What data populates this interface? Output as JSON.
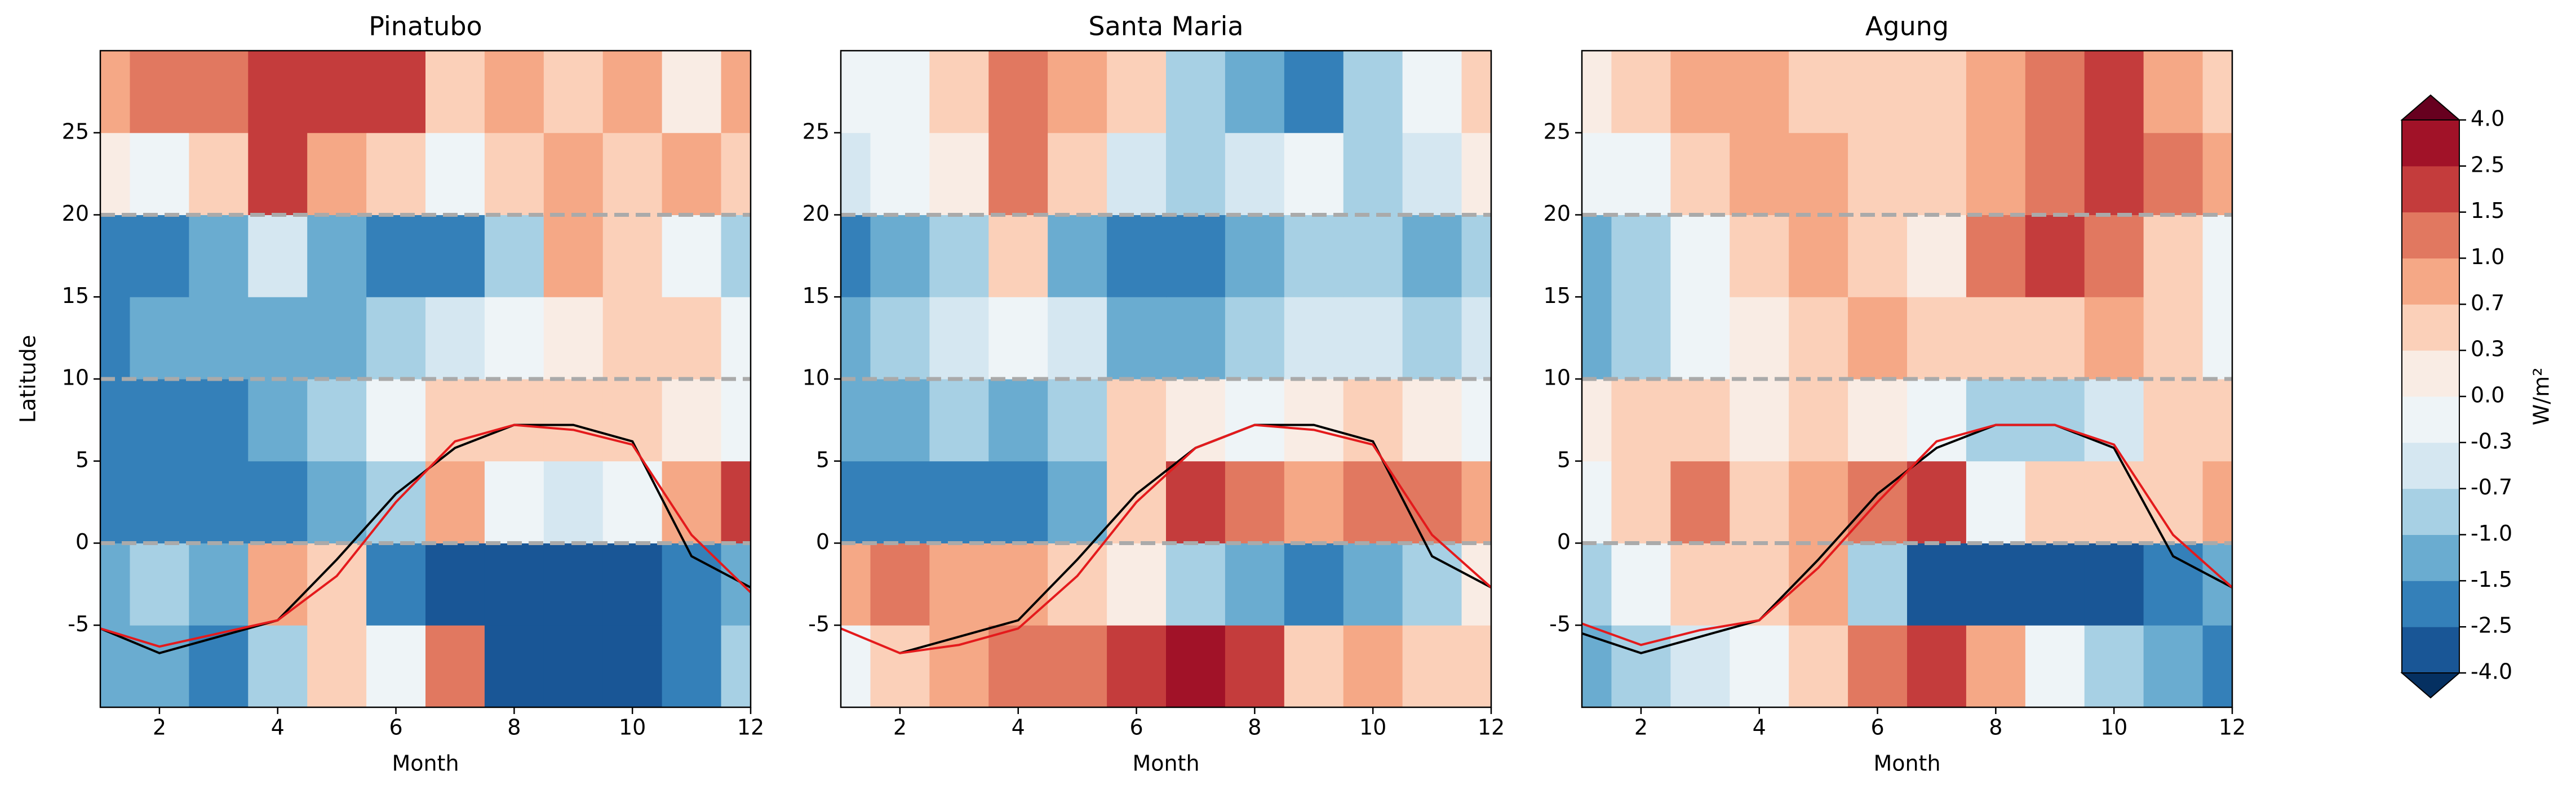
{
  "chart_data": [
    {
      "type": "contour",
      "title": "Pinatubo",
      "xlabel": "Month",
      "ylabel": "Latitude",
      "x": [
        1,
        2,
        3,
        4,
        5,
        6,
        7,
        8,
        9,
        10,
        11,
        12
      ],
      "y": [
        -7.5,
        -2.5,
        2.5,
        7.5,
        12.5,
        17.5,
        22.5,
        27.5
      ],
      "z": [
        [
          -1.5,
          -1.5,
          -2,
          -1,
          0.3,
          -0.3,
          1,
          -4,
          -4,
          -4,
          -2.5,
          -1
        ],
        [
          -1.5,
          -1,
          -1.5,
          0.7,
          0.3,
          -2.5,
          -4,
          -4,
          -4,
          -4,
          -2.5,
          -1.5
        ],
        [
          -2.5,
          -2.5,
          -2.5,
          -2.5,
          -1.5,
          -1,
          0.7,
          -0.3,
          -0.7,
          -0.3,
          0.7,
          1.5
        ],
        [
          -2.5,
          -2.5,
          -2.5,
          -1.5,
          -1,
          -0.3,
          0.3,
          0.3,
          0.3,
          0.3,
          0,
          -0.3
        ],
        [
          -2.5,
          -1.5,
          -1.5,
          -1.5,
          -1.5,
          -1,
          -0.7,
          -0.3,
          0,
          0.3,
          0.3,
          -0.3
        ],
        [
          -2.5,
          -2.5,
          -1.5,
          -0.7,
          -1.5,
          -2.5,
          -2.5,
          -1,
          0.7,
          0.3,
          -0.3,
          -1
        ],
        [
          0,
          -0.3,
          0.3,
          1.5,
          0.7,
          0.3,
          -0.3,
          0.3,
          0.7,
          0.3,
          0.7,
          0.3
        ],
        [
          0.7,
          1,
          1,
          1.5,
          1.5,
          1.5,
          0.3,
          0.7,
          0.3,
          0.7,
          0,
          0.7
        ]
      ],
      "series": [
        {
          "color": "#000000",
          "values": [
            -5.2,
            -6.7,
            -5.7,
            -4.7,
            -1,
            3,
            5.8,
            7.2,
            7.2,
            6.2,
            -0.8,
            -2.7
          ]
        },
        {
          "color": "#e41a1c",
          "values": [
            -5.2,
            -6.3,
            -5.5,
            -4.7,
            -2,
            2.5,
            6.2,
            7.2,
            6.9,
            6,
            0.5,
            -3
          ]
        }
      ],
      "hlines": [
        0,
        10,
        20
      ],
      "xlim": [
        1,
        12
      ],
      "ylim": [
        -10,
        30
      ],
      "xticks": [
        2,
        4,
        6,
        8,
        10,
        12
      ],
      "yticks": [
        -5,
        0,
        5,
        10,
        15,
        20,
        25
      ]
    },
    {
      "type": "contour",
      "title": "Santa Maria",
      "xlabel": "Month",
      "x": [
        1,
        2,
        3,
        4,
        5,
        6,
        7,
        8,
        9,
        10,
        11,
        12
      ],
      "y": [
        -7.5,
        -2.5,
        2.5,
        7.5,
        12.5,
        17.5,
        22.5,
        27.5
      ],
      "z": [
        [
          -0.3,
          0.3,
          0.7,
          1,
          1,
          1.5,
          2.5,
          1.5,
          0.3,
          0.7,
          0.3,
          0.3
        ],
        [
          0.7,
          1,
          0.7,
          0.7,
          0.3,
          0,
          -1,
          -1.5,
          -2.5,
          -1.5,
          -1,
          0
        ],
        [
          -2.5,
          -2.5,
          -2.5,
          -2.5,
          -1.5,
          0.3,
          1.5,
          1,
          0.7,
          1,
          1,
          0.7
        ],
        [
          -1.5,
          -1.5,
          -1,
          -1.5,
          -1,
          0.3,
          0,
          -0.3,
          0,
          0.3,
          0,
          -0.3
        ],
        [
          -1.5,
          -1,
          -0.7,
          -0.3,
          -0.7,
          -1.5,
          -1.5,
          -1,
          -0.7,
          -0.7,
          -1,
          -0.7
        ],
        [
          -2.5,
          -1.5,
          -1,
          0.3,
          -1.5,
          -2.5,
          -2.5,
          -1.5,
          -1,
          -1,
          -1.5,
          -1
        ],
        [
          -0.7,
          -0.3,
          0,
          1,
          0.3,
          -0.7,
          -1,
          -0.7,
          -0.3,
          -1,
          -0.7,
          0
        ],
        [
          -0.3,
          -0.3,
          0.3,
          1,
          0.7,
          0.3,
          -1,
          -1.5,
          -2.5,
          -1,
          -0.3,
          0.3
        ]
      ],
      "series": [
        {
          "color": "#000000",
          "values": [
            null,
            -6.7,
            -5.7,
            -4.7,
            -1,
            3,
            5.8,
            7.2,
            7.2,
            6.2,
            -0.8,
            -2.7
          ]
        },
        {
          "color": "#e41a1c",
          "values": [
            -5.2,
            -6.7,
            -6.2,
            -5.2,
            -2,
            2.5,
            5.8,
            7.2,
            6.9,
            6,
            0.5,
            -2.7
          ]
        }
      ],
      "hlines": [
        0,
        10,
        20
      ],
      "xlim": [
        1,
        12
      ],
      "ylim": [
        -10,
        30
      ],
      "xticks": [
        2,
        4,
        6,
        8,
        10,
        12
      ],
      "yticks": [
        -5,
        0,
        5,
        10,
        15,
        20,
        25
      ]
    },
    {
      "type": "contour",
      "title": "Agung",
      "xlabel": "Month",
      "x": [
        1,
        2,
        3,
        4,
        5,
        6,
        7,
        8,
        9,
        10,
        11,
        12
      ],
      "y": [
        -7.5,
        -2.5,
        2.5,
        7.5,
        12.5,
        17.5,
        22.5,
        27.5
      ],
      "z": [
        [
          -1.5,
          -1,
          -0.7,
          -0.3,
          0.3,
          1,
          1.5,
          0.7,
          -0.3,
          -1,
          -1.5,
          -2.5
        ],
        [
          -1,
          -0.3,
          0.3,
          0.3,
          0.7,
          -1,
          -4,
          -4,
          -4,
          -4,
          -2.5,
          -1.5
        ],
        [
          -0.3,
          0.3,
          1,
          0.3,
          0.7,
          1,
          1.5,
          -0.3,
          0.3,
          0.3,
          0.3,
          0.7
        ],
        [
          0,
          0.3,
          0.3,
          0,
          0.3,
          0,
          -0.3,
          -1,
          -1,
          -0.7,
          0.3,
          0.3
        ],
        [
          -1.5,
          -1,
          -0.3,
          0,
          0.3,
          0.7,
          0.3,
          0.3,
          0.3,
          0.7,
          0.3,
          -0.3
        ],
        [
          -1.5,
          -1,
          -0.3,
          0.3,
          0.7,
          0.3,
          0,
          1,
          1.5,
          1,
          0.3,
          -0.3
        ],
        [
          -0.3,
          -0.3,
          0.3,
          0.7,
          0.7,
          0.3,
          0.3,
          0.7,
          1,
          1.5,
          1,
          0.7
        ],
        [
          0,
          0.3,
          0.7,
          0.7,
          0.3,
          0.3,
          0.3,
          0.7,
          1,
          1.5,
          0.7,
          0.3
        ]
      ],
      "series": [
        {
          "color": "#000000",
          "values": [
            -5.5,
            -6.7,
            -5.7,
            -4.7,
            -1,
            3,
            5.8,
            7.2,
            7.2,
            5.8,
            -0.8,
            -2.7
          ]
        },
        {
          "color": "#e41a1c",
          "values": [
            -4.9,
            -6.2,
            -5.3,
            -4.7,
            -1.5,
            2.5,
            6.2,
            7.2,
            7.2,
            6,
            0.5,
            -2.7
          ]
        }
      ],
      "hlines": [
        0,
        10,
        20
      ],
      "xlim": [
        1,
        12
      ],
      "ylim": [
        -10,
        30
      ],
      "xticks": [
        2,
        4,
        6,
        8,
        10,
        12
      ],
      "yticks": [
        -5,
        0,
        5,
        10,
        15,
        20,
        25
      ]
    }
  ],
  "colorbar": {
    "label": "W/m²",
    "ticks": [
      {
        "value": -4,
        "label": "-4.0"
      },
      {
        "value": -2.5,
        "label": "-2.5"
      },
      {
        "value": -1.5,
        "label": "-1.5"
      },
      {
        "value": -1,
        "label": "-1.0"
      },
      {
        "value": -0.7,
        "label": "-0.7"
      },
      {
        "value": -0.3,
        "label": "-0.3"
      },
      {
        "value": 0,
        "label": "0.0"
      },
      {
        "value": 0.3,
        "label": "0.3"
      },
      {
        "value": 0.7,
        "label": "0.7"
      },
      {
        "value": 1,
        "label": "1.0"
      },
      {
        "value": 1.5,
        "label": "1.5"
      },
      {
        "value": 2.5,
        "label": "2.5"
      },
      {
        "value": 4,
        "label": "4.0"
      }
    ],
    "colors": [
      "#195696",
      "#3480b9",
      "#6aacd0",
      "#a7d0e4",
      "#d5e7f1",
      "#eef4f7",
      "#f9ece4",
      "#fbd0b9",
      "#f5a886",
      "#e17860",
      "#c43c3c",
      "#a11228"
    ],
    "under_color": "#053061",
    "over_color": "#67001f"
  }
}
